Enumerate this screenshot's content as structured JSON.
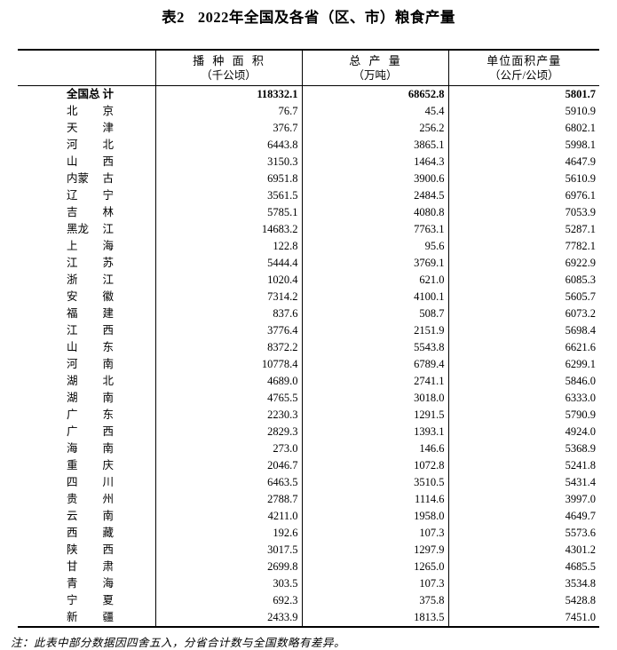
{
  "page": {
    "table_label": "表2",
    "title": "2022年全国及各省（区、市）粮食产量",
    "note": "注：此表中部分数据因四舍五入，分省合计数与全国数略有差异。"
  },
  "colors": {
    "text": "#000000",
    "background": "#ffffff",
    "border": "#000000"
  },
  "table": {
    "columns": [
      {
        "line1": "",
        "line2": ""
      },
      {
        "line1": "播 种 面 积",
        "line2": "（千公顷）"
      },
      {
        "line1": "总 产 量",
        "line2": "（万吨）"
      },
      {
        "line1": "单位面积产量",
        "line2": "（公斤/公顷）"
      }
    ],
    "total_row": {
      "name": "全国总计",
      "sown_area": "118332.1",
      "total_output": "68652.8",
      "yield": "5801.7"
    },
    "rows": [
      {
        "name": "北京",
        "sown_area": "76.7",
        "total_output": "45.4",
        "yield": "5910.9"
      },
      {
        "name": "天津",
        "sown_area": "376.7",
        "total_output": "256.2",
        "yield": "6802.1"
      },
      {
        "name": "河北",
        "sown_area": "6443.8",
        "total_output": "3865.1",
        "yield": "5998.1"
      },
      {
        "name": "山西",
        "sown_area": "3150.3",
        "total_output": "1464.3",
        "yield": "4647.9"
      },
      {
        "name": "内蒙古",
        "sown_area": "6951.8",
        "total_output": "3900.6",
        "yield": "5610.9"
      },
      {
        "name": "辽宁",
        "sown_area": "3561.5",
        "total_output": "2484.5",
        "yield": "6976.1"
      },
      {
        "name": "吉林",
        "sown_area": "5785.1",
        "total_output": "4080.8",
        "yield": "7053.9"
      },
      {
        "name": "黑龙江",
        "sown_area": "14683.2",
        "total_output": "7763.1",
        "yield": "5287.1"
      },
      {
        "name": "上海",
        "sown_area": "122.8",
        "total_output": "95.6",
        "yield": "7782.1"
      },
      {
        "name": "江苏",
        "sown_area": "5444.4",
        "total_output": "3769.1",
        "yield": "6922.9"
      },
      {
        "name": "浙江",
        "sown_area": "1020.4",
        "total_output": "621.0",
        "yield": "6085.3"
      },
      {
        "name": "安徽",
        "sown_area": "7314.2",
        "total_output": "4100.1",
        "yield": "5605.7"
      },
      {
        "name": "福建",
        "sown_area": "837.6",
        "total_output": "508.7",
        "yield": "6073.2"
      },
      {
        "name": "江西",
        "sown_area": "3776.4",
        "total_output": "2151.9",
        "yield": "5698.4"
      },
      {
        "name": "山东",
        "sown_area": "8372.2",
        "total_output": "5543.8",
        "yield": "6621.6"
      },
      {
        "name": "河南",
        "sown_area": "10778.4",
        "total_output": "6789.4",
        "yield": "6299.1"
      },
      {
        "name": "湖北",
        "sown_area": "4689.0",
        "total_output": "2741.1",
        "yield": "5846.0"
      },
      {
        "name": "湖南",
        "sown_area": "4765.5",
        "total_output": "3018.0",
        "yield": "6333.0"
      },
      {
        "name": "广东",
        "sown_area": "2230.3",
        "total_output": "1291.5",
        "yield": "5790.9"
      },
      {
        "name": "广西",
        "sown_area": "2829.3",
        "total_output": "1393.1",
        "yield": "4924.0"
      },
      {
        "name": "海南",
        "sown_area": "273.0",
        "total_output": "146.6",
        "yield": "5368.9"
      },
      {
        "name": "重庆",
        "sown_area": "2046.7",
        "total_output": "1072.8",
        "yield": "5241.8"
      },
      {
        "name": "四川",
        "sown_area": "6463.5",
        "total_output": "3510.5",
        "yield": "5431.4"
      },
      {
        "name": "贵州",
        "sown_area": "2788.7",
        "total_output": "1114.6",
        "yield": "3997.0"
      },
      {
        "name": "云南",
        "sown_area": "4211.0",
        "total_output": "1958.0",
        "yield": "4649.7"
      },
      {
        "name": "西藏",
        "sown_area": "192.6",
        "total_output": "107.3",
        "yield": "5573.6"
      },
      {
        "name": "陕西",
        "sown_area": "3017.5",
        "total_output": "1297.9",
        "yield": "4301.2"
      },
      {
        "name": "甘肃",
        "sown_area": "2699.8",
        "total_output": "1265.0",
        "yield": "4685.5"
      },
      {
        "name": "青海",
        "sown_area": "303.5",
        "total_output": "107.3",
        "yield": "3534.8"
      },
      {
        "name": "宁夏",
        "sown_area": "692.3",
        "total_output": "375.8",
        "yield": "5428.8"
      },
      {
        "name": "新疆",
        "sown_area": "2433.9",
        "total_output": "1813.5",
        "yield": "7451.0"
      }
    ]
  }
}
